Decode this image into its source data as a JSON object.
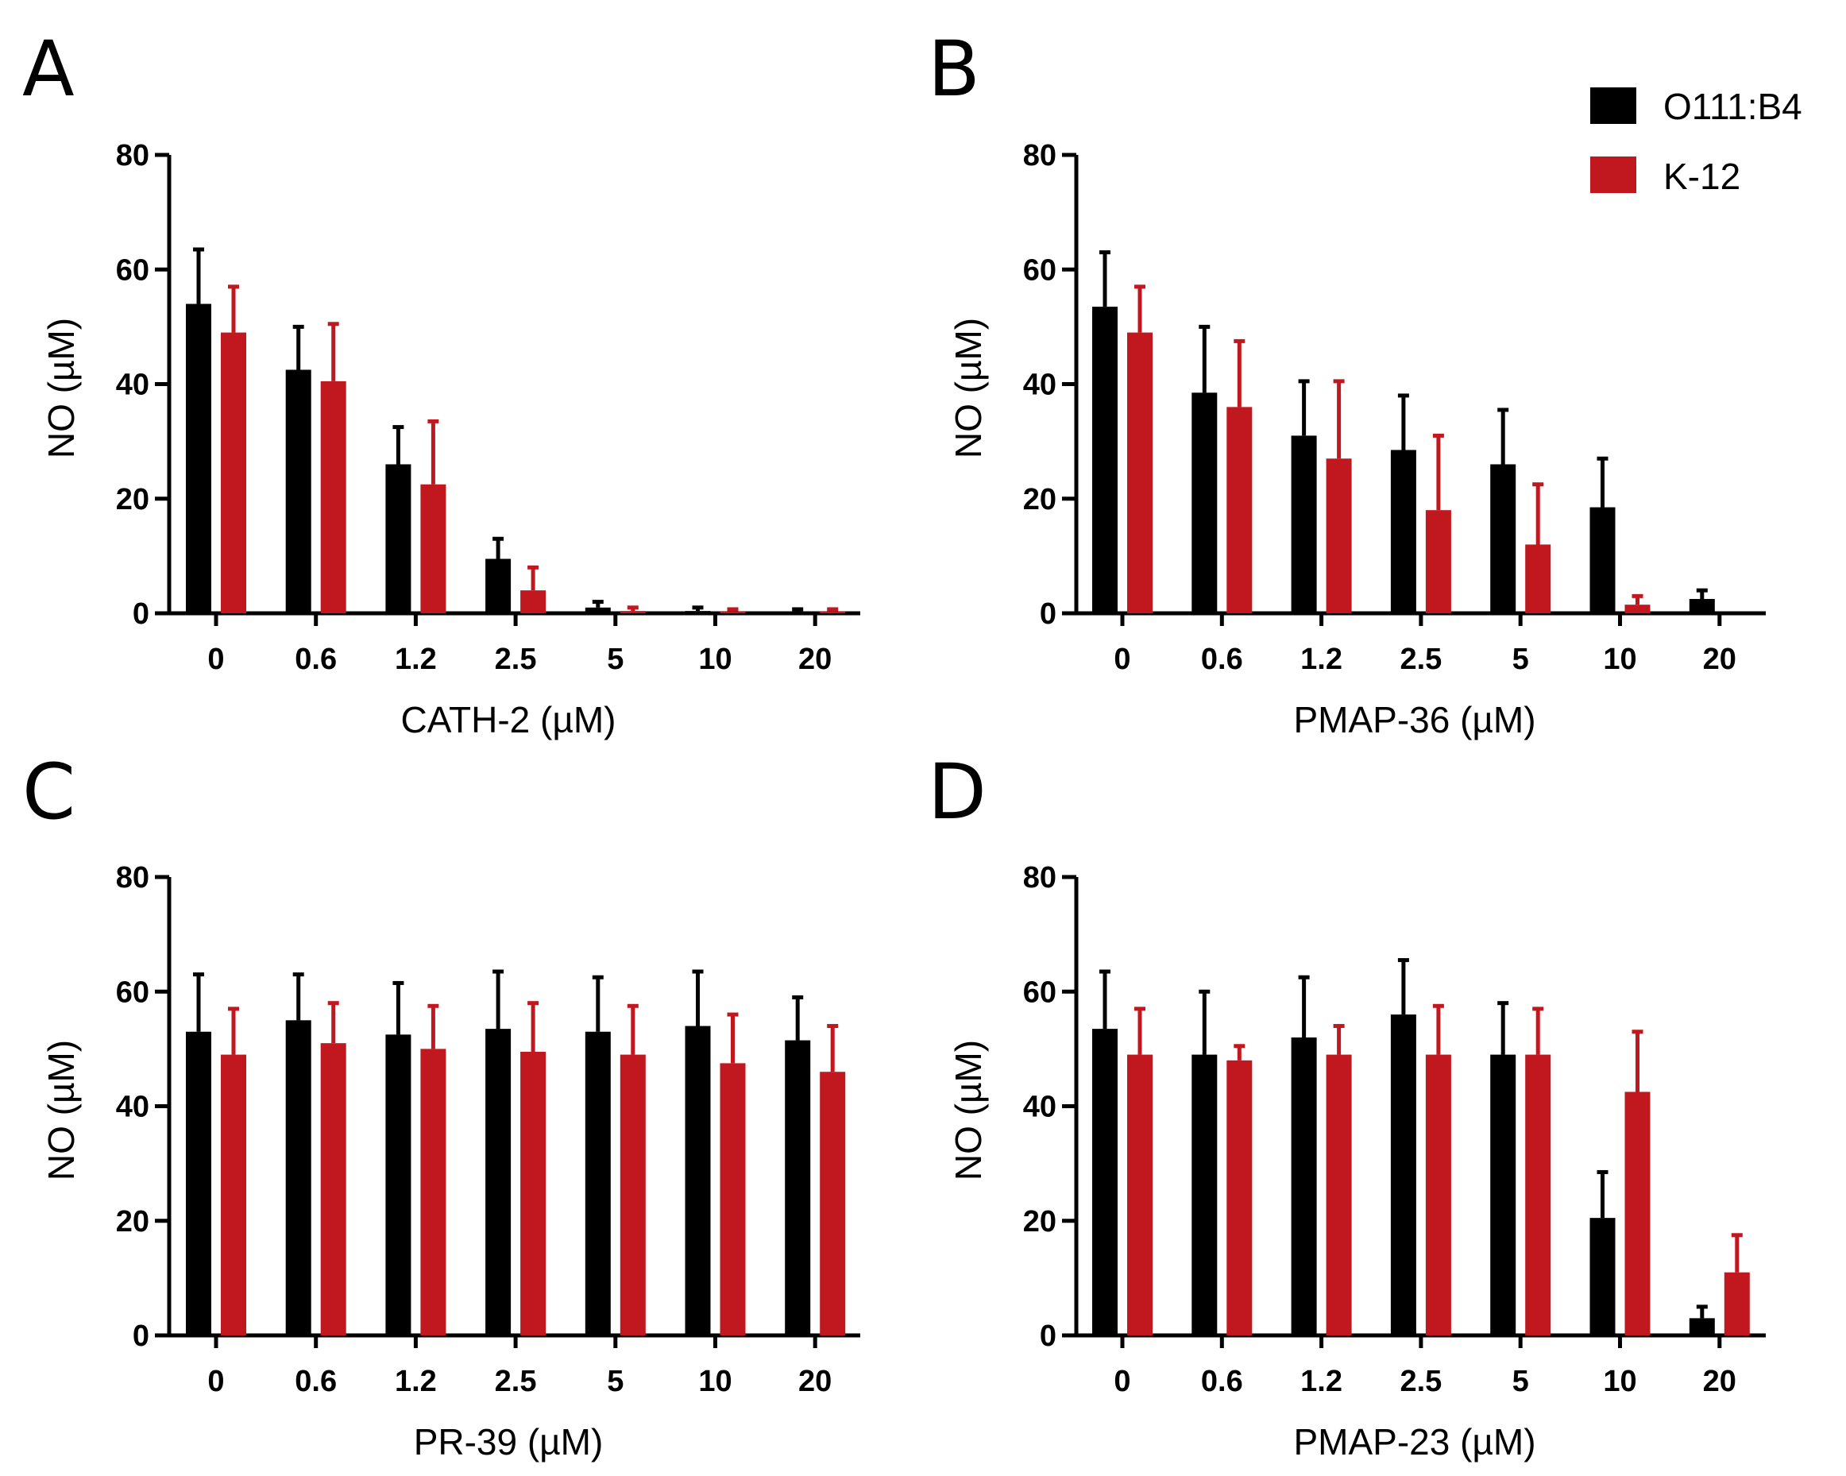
{
  "legend": {
    "entries": [
      {
        "name": "O111:B4",
        "color": "#000000"
      },
      {
        "name": "K-12",
        "color": "#c1171f"
      }
    ]
  },
  "chart_data": [
    {
      "panel": "A",
      "type": "bar",
      "xlabel": "CATH-2 (µM)",
      "ylabel": "NO (µM)",
      "ylim": [
        0,
        80
      ],
      "yticks": [
        "0",
        "20",
        "40",
        "60",
        "80"
      ],
      "categories": [
        "0",
        "0.6",
        "1.2",
        "2.5",
        "5",
        "10",
        "20"
      ],
      "series": [
        {
          "name": "O111:B4",
          "values": [
            54,
            42.5,
            26,
            9.5,
            1,
            0.4,
            0.3
          ],
          "errors": [
            9.5,
            7.5,
            6.5,
            3.5,
            1,
            0.6,
            0.4
          ]
        },
        {
          "name": "K-12",
          "values": [
            49,
            40.5,
            22.5,
            4,
            0.4,
            0.3,
            0.3
          ],
          "errors": [
            8,
            10,
            11,
            4,
            0.6,
            0.4,
            0.4
          ]
        }
      ]
    },
    {
      "panel": "B",
      "type": "bar",
      "xlabel": "PMAP-36 (µM)",
      "ylabel": "NO (µM)",
      "ylim": [
        0,
        80
      ],
      "yticks": [
        "0",
        "20",
        "40",
        "60",
        "80"
      ],
      "categories": [
        "0",
        "0.6",
        "1.2",
        "2.5",
        "5",
        "10",
        "20"
      ],
      "series": [
        {
          "name": "O111:B4",
          "values": [
            53.5,
            38.5,
            31,
            28.5,
            26,
            18.5,
            2.5
          ],
          "errors": [
            9.5,
            11.5,
            9.5,
            9.5,
            9.5,
            8.5,
            1.5
          ]
        },
        {
          "name": "K-12",
          "values": [
            49,
            36,
            27,
            18,
            12,
            1.5,
            0
          ],
          "errors": [
            8,
            11.5,
            13.5,
            13,
            10.5,
            1.5,
            0
          ]
        }
      ]
    },
    {
      "panel": "C",
      "type": "bar",
      "xlabel": "PR-39 (µM)",
      "ylabel": "NO (µM)",
      "ylim": [
        0,
        80
      ],
      "yticks": [
        "0",
        "20",
        "40",
        "60",
        "80"
      ],
      "categories": [
        "0",
        "0.6",
        "1.2",
        "2.5",
        "5",
        "10",
        "20"
      ],
      "series": [
        {
          "name": "O111:B4",
          "values": [
            53,
            55,
            52.5,
            53.5,
            53,
            54,
            51.5
          ],
          "errors": [
            10,
            8,
            9,
            10,
            9.5,
            9.5,
            7.5
          ]
        },
        {
          "name": "K-12",
          "values": [
            49,
            51,
            50,
            49.5,
            49,
            47.5,
            46
          ],
          "errors": [
            8,
            7,
            7.5,
            8.5,
            8.5,
            8.5,
            8
          ]
        }
      ]
    },
    {
      "panel": "D",
      "type": "bar",
      "xlabel": "PMAP-23 (µM)",
      "ylabel": "NO (µM)",
      "ylim": [
        0,
        80
      ],
      "yticks": [
        "0",
        "20",
        "40",
        "60",
        "80"
      ],
      "categories": [
        "0",
        "0.6",
        "1.2",
        "2.5",
        "5",
        "10",
        "20"
      ],
      "series": [
        {
          "name": "O111:B4",
          "values": [
            53.5,
            49,
            52,
            56,
            49,
            20.5,
            3
          ],
          "errors": [
            10,
            11,
            10.5,
            9.5,
            9,
            8,
            2
          ]
        },
        {
          "name": "K-12",
          "values": [
            49,
            48,
            49,
            49,
            49,
            42.5,
            11
          ],
          "errors": [
            8,
            2.5,
            5,
            8.5,
            8,
            10.5,
            6.5
          ]
        }
      ]
    }
  ]
}
